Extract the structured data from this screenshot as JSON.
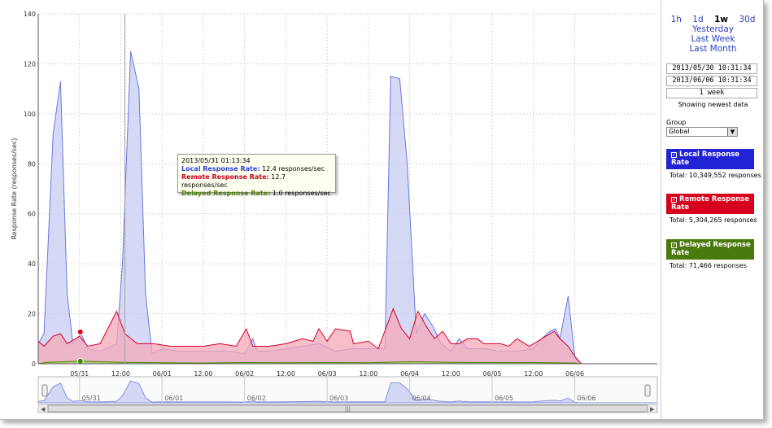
{
  "chart_data": {
    "type": "area",
    "ylabel": "Response Rate (responses/sec)",
    "ylim": [
      0,
      140
    ],
    "yticks": [
      0,
      20,
      40,
      60,
      80,
      100,
      120,
      140
    ],
    "grid": true,
    "x_range": [
      0,
      7.5
    ],
    "x_tick_labels": [
      {
        "t": 0.5,
        "label": "05/31"
      },
      {
        "t": 1.0,
        "label": "12:00"
      },
      {
        "t": 1.5,
        "label": "06/01"
      },
      {
        "t": 2.0,
        "label": "12:00"
      },
      {
        "t": 2.5,
        "label": "06/02"
      },
      {
        "t": 3.0,
        "label": "12:00"
      },
      {
        "t": 3.5,
        "label": "06/03"
      },
      {
        "t": 4.0,
        "label": "12:00"
      },
      {
        "t": 4.5,
        "label": "06/04"
      },
      {
        "t": 5.0,
        "label": "12:00"
      },
      {
        "t": 5.5,
        "label": "06/05"
      },
      {
        "t": 6.0,
        "label": "12:00"
      },
      {
        "t": 6.5,
        "label": "06/06"
      }
    ],
    "series": [
      {
        "name": "Local Response Rate",
        "color": "#6a78e0",
        "fill": "#c8ccf2",
        "points": [
          [
            0,
            8
          ],
          [
            0.07,
            12
          ],
          [
            0.18,
            92
          ],
          [
            0.27,
            113
          ],
          [
            0.35,
            28
          ],
          [
            0.42,
            8
          ],
          [
            0.52,
            12
          ],
          [
            0.6,
            6
          ],
          [
            0.75,
            5
          ],
          [
            0.95,
            8
          ],
          [
            1.02,
            40
          ],
          [
            1.12,
            125
          ],
          [
            1.22,
            110
          ],
          [
            1.3,
            28
          ],
          [
            1.38,
            4
          ],
          [
            1.5,
            6
          ],
          [
            1.7,
            5
          ],
          [
            1.9,
            5
          ],
          [
            2.1,
            5
          ],
          [
            2.3,
            5
          ],
          [
            2.5,
            4
          ],
          [
            2.6,
            10
          ],
          [
            2.65,
            5
          ],
          [
            2.8,
            5
          ],
          [
            3.0,
            6
          ],
          [
            3.2,
            7
          ],
          [
            3.4,
            8
          ],
          [
            3.6,
            5
          ],
          [
            3.8,
            6
          ],
          [
            4.0,
            6
          ],
          [
            4.2,
            6
          ],
          [
            4.27,
            115
          ],
          [
            4.38,
            114
          ],
          [
            4.47,
            80
          ],
          [
            4.58,
            12
          ],
          [
            4.68,
            20
          ],
          [
            4.78,
            15
          ],
          [
            4.88,
            8
          ],
          [
            5.0,
            5
          ],
          [
            5.1,
            10
          ],
          [
            5.2,
            6
          ],
          [
            5.4,
            6
          ],
          [
            5.6,
            5
          ],
          [
            5.8,
            5
          ],
          [
            6.0,
            6
          ],
          [
            6.1,
            10
          ],
          [
            6.2,
            13
          ],
          [
            6.27,
            14
          ],
          [
            6.32,
            10
          ],
          [
            6.42,
            27
          ],
          [
            6.5,
            3
          ],
          [
            6.58,
            0
          ],
          [
            7.5,
            0
          ]
        ]
      },
      {
        "name": "Remote Response Rate",
        "color": "#d6002a",
        "fill": "#f4a8b8",
        "points": [
          [
            0,
            9
          ],
          [
            0.07,
            7
          ],
          [
            0.18,
            11
          ],
          [
            0.27,
            12
          ],
          [
            0.35,
            8
          ],
          [
            0.5,
            11
          ],
          [
            0.6,
            7
          ],
          [
            0.75,
            8
          ],
          [
            0.95,
            21
          ],
          [
            1.05,
            12
          ],
          [
            1.2,
            8
          ],
          [
            1.4,
            8
          ],
          [
            1.6,
            7
          ],
          [
            1.8,
            7
          ],
          [
            2.0,
            7
          ],
          [
            2.2,
            8
          ],
          [
            2.4,
            7
          ],
          [
            2.52,
            14
          ],
          [
            2.6,
            7
          ],
          [
            2.8,
            7
          ],
          [
            3.0,
            8
          ],
          [
            3.2,
            10
          ],
          [
            3.33,
            9
          ],
          [
            3.4,
            14
          ],
          [
            3.5,
            9
          ],
          [
            3.6,
            14
          ],
          [
            3.78,
            13
          ],
          [
            3.82,
            8
          ],
          [
            4.0,
            9
          ],
          [
            4.12,
            6
          ],
          [
            4.3,
            22
          ],
          [
            4.4,
            14
          ],
          [
            4.5,
            10
          ],
          [
            4.6,
            21
          ],
          [
            4.7,
            15
          ],
          [
            4.8,
            10
          ],
          [
            4.9,
            13
          ],
          [
            5.0,
            8
          ],
          [
            5.1,
            8
          ],
          [
            5.2,
            10
          ],
          [
            5.32,
            10
          ],
          [
            5.4,
            8
          ],
          [
            5.5,
            8
          ],
          [
            5.6,
            8
          ],
          [
            5.7,
            7
          ],
          [
            5.8,
            10
          ],
          [
            5.95,
            7
          ],
          [
            6.05,
            9
          ],
          [
            6.15,
            11
          ],
          [
            6.25,
            13
          ],
          [
            6.32,
            10
          ],
          [
            6.42,
            7
          ],
          [
            6.52,
            2
          ],
          [
            6.58,
            0
          ],
          [
            7.5,
            0
          ]
        ]
      },
      {
        "name": "Delayed Response Rate",
        "color": "#4a8a00",
        "fill": "#9ccc6a",
        "points": [
          [
            0,
            0
          ],
          [
            0.1,
            0.6
          ],
          [
            0.5,
            1.0
          ],
          [
            1.0,
            0.6
          ],
          [
            1.5,
            0.4
          ],
          [
            2.0,
            0.3
          ],
          [
            2.5,
            0.5
          ],
          [
            3.0,
            0.4
          ],
          [
            3.5,
            0.5
          ],
          [
            4.0,
            0.4
          ],
          [
            4.5,
            0.8
          ],
          [
            5.0,
            0.6
          ],
          [
            5.5,
            0.5
          ],
          [
            6.0,
            0.5
          ],
          [
            6.5,
            0.3
          ],
          [
            6.58,
            0
          ],
          [
            7.5,
            0
          ]
        ]
      }
    ],
    "cursor_t": 1.05,
    "markers": [
      {
        "series": "Remote Response Rate",
        "t": 0.51,
        "v": 12.7,
        "color": "#e0001a"
      },
      {
        "series": "Delayed Response Rate",
        "t": 0.51,
        "v": 1.0,
        "color": "#3a8a00"
      }
    ]
  },
  "navigator": {
    "labels": [
      "05/31",
      "06/01",
      "06/02",
      "06/03",
      "06/04",
      "06/05",
      "06/06"
    ],
    "scroll_grip": "|||"
  },
  "tooltip": {
    "timestamp": "2013/05/31 01:13:34",
    "local_label": "Local Response Rate:",
    "local_value": "12.4 responses/sec",
    "remote_label": "Remote Response Rate:",
    "remote_value": "12.7 responses/sec",
    "delayed_label": "Delayed Response Rate:",
    "delayed_value": "1.0 responses/sec"
  },
  "sidebar": {
    "ranges": [
      "1h",
      "1d",
      "1w",
      "30d"
    ],
    "active_range": "1w",
    "yesterday": "Yesterday",
    "last_week": "Last Week",
    "last_month": "Last Month",
    "start_date": "2013/05/30 10:31:34",
    "end_date": "2013/06/06 10:31:34",
    "duration": "1 week",
    "showing": "Showing newest data",
    "group_label": "Group",
    "group_value": "Global",
    "legend": [
      {
        "label": "Local Response Rate",
        "color": "#2323d6",
        "total": "Total: 10,349,552 responses"
      },
      {
        "label": "Remote Response Rate",
        "color": "#d6001e",
        "total": "Total: 5,304,265 responses"
      },
      {
        "label": "Delayed Response Rate",
        "color": "#4a7a0e",
        "total": "Total: 71,466 responses"
      }
    ]
  }
}
